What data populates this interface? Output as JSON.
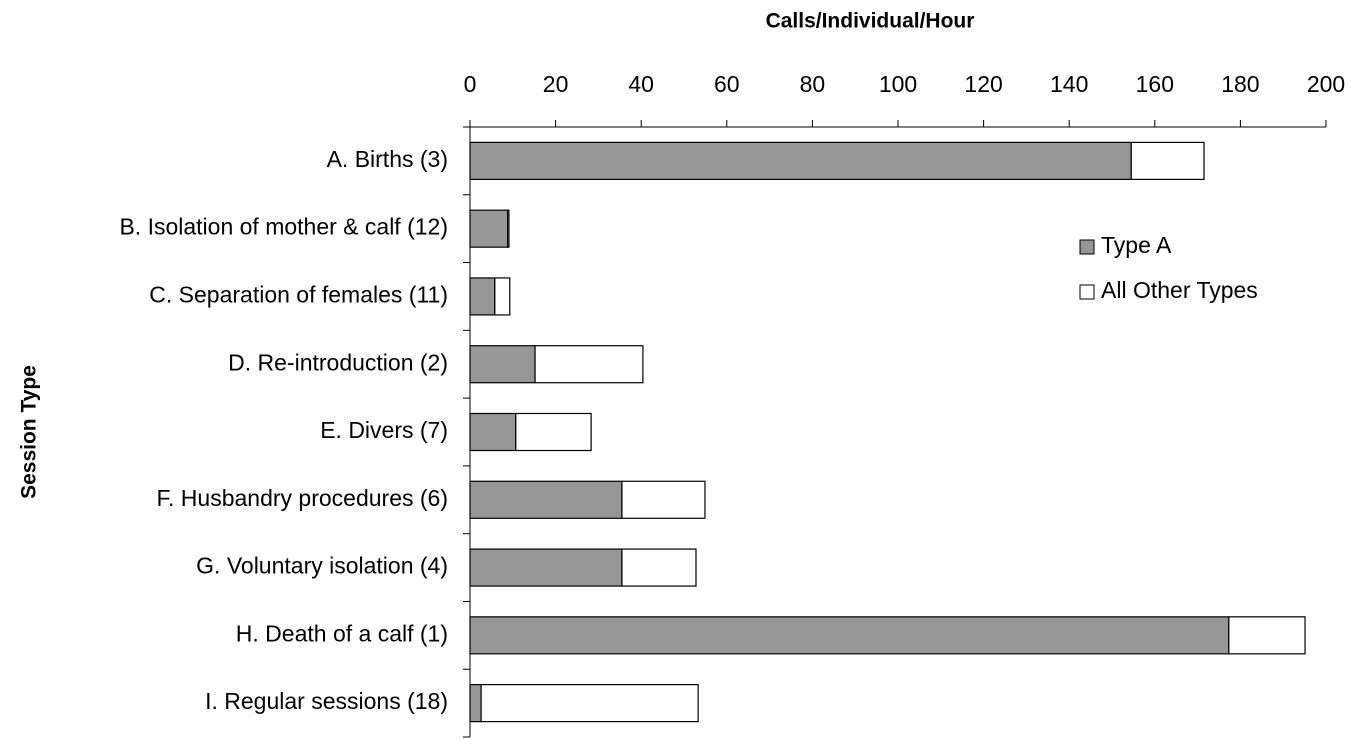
{
  "chart_data": {
    "type": "hbar-stacked",
    "title": "Calls/Individual/Hour",
    "y_label": "Session Type",
    "categories": [
      "A. Births (3)",
      "B. Isolation of mother & calf (12)",
      "C. Separation of females (11)",
      "D. Re-introduction (2)",
      "E. Divers (7)",
      "F. Husbandry procedures (6)",
      "G. Voluntary isolation (4)",
      "H. Death of a calf (1)",
      "I. Regular sessions (18)"
    ],
    "series": [
      {
        "name": "Type A",
        "color": "#969696",
        "values": [
          154.5,
          8.8,
          5.8,
          15.2,
          10.7,
          35.5,
          35.5,
          177.3,
          2.6
        ]
      },
      {
        "name": "All Other Types",
        "color": "#ffffff",
        "values": [
          17,
          0.3,
          3.5,
          25.2,
          17.6,
          19.4,
          17.3,
          17.8,
          50.7
        ]
      }
    ],
    "xlim": [
      0,
      200
    ],
    "xticks": [
      0,
      20,
      40,
      60,
      80,
      100,
      120,
      140,
      160,
      180,
      200
    ],
    "legend": "right"
  }
}
